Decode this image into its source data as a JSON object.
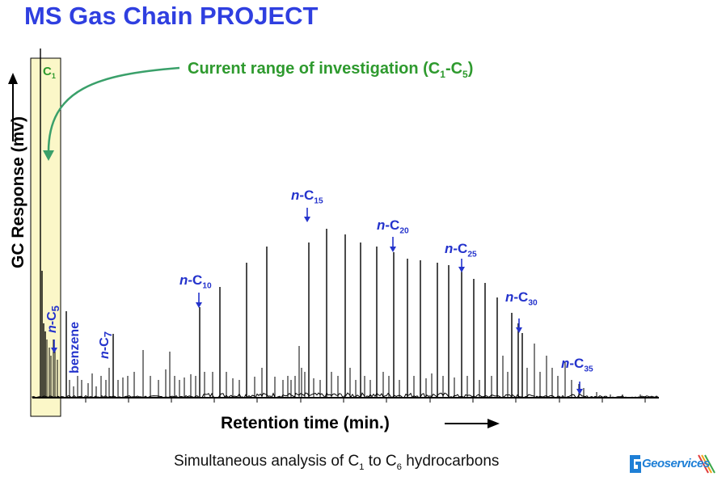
{
  "title": "MS Gas Chain PROJECT",
  "caption": {
    "prefix": "Simultaneous analysis of C",
    "sub1": "1",
    "mid": " to C",
    "sub2": "6",
    "suffix": " hydrocarbons"
  },
  "range_note": {
    "prefix": "Current range of investigation (C",
    "sub1": "1",
    "mid": "-C",
    "sub2": "5",
    "suffix": ")"
  },
  "c1_label": {
    "base": "C",
    "sub": "1"
  },
  "logo": {
    "text": "Geoservices"
  },
  "colors": {
    "title": "#2f3fe0",
    "annotation": "#2433cc",
    "range": "#2e9a2e",
    "highlight": "#fbf7c8",
    "logo": "#1e7fd6"
  },
  "chart_data": {
    "type": "line",
    "ylabel": "GC Response (mv)",
    "xlabel": "Retention time (min.)",
    "peaks": [
      {
        "label_prefix": "n",
        "label_base": "-C",
        "label_sub": "5",
        "orientation": "vertical"
      },
      {
        "label_prefix": "",
        "label_base": "benzene",
        "label_sub": "",
        "orientation": "vertical"
      },
      {
        "label_prefix": "n",
        "label_base": "-C",
        "label_sub": "7",
        "orientation": "vertical"
      },
      {
        "label_prefix": "n",
        "label_base": "-C",
        "label_sub": "10",
        "orientation": "horizontal"
      },
      {
        "label_prefix": "n",
        "label_base": "-C",
        "label_sub": "15",
        "orientation": "horizontal"
      },
      {
        "label_prefix": "n",
        "label_base": "-C",
        "label_sub": "20",
        "orientation": "horizontal"
      },
      {
        "label_prefix": "n",
        "label_base": "-C",
        "label_sub": "25",
        "orientation": "horizontal"
      },
      {
        "label_prefix": "n",
        "label_base": "-C",
        "label_sub": "30",
        "orientation": "horizontal"
      },
      {
        "label_prefix": "n",
        "label_base": "-C",
        "label_sub": "35",
        "orientation": "horizontal"
      }
    ]
  }
}
